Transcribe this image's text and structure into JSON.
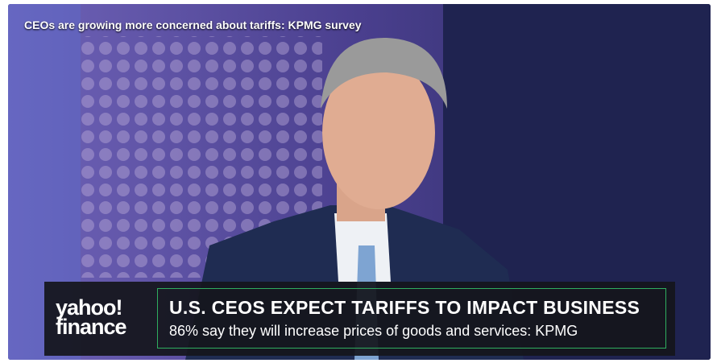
{
  "video": {
    "title": "CEOs are growing more concerned about tariffs: KPMG survey"
  },
  "lower_third": {
    "brand_top": "yahoo!",
    "brand_bottom": "finance",
    "headline": "U.S. CEOS EXPECT TARIFFS TO IMPACT BUSINESS",
    "subheadline": "86% say they will increase prices of goods and services: KPMG"
  }
}
